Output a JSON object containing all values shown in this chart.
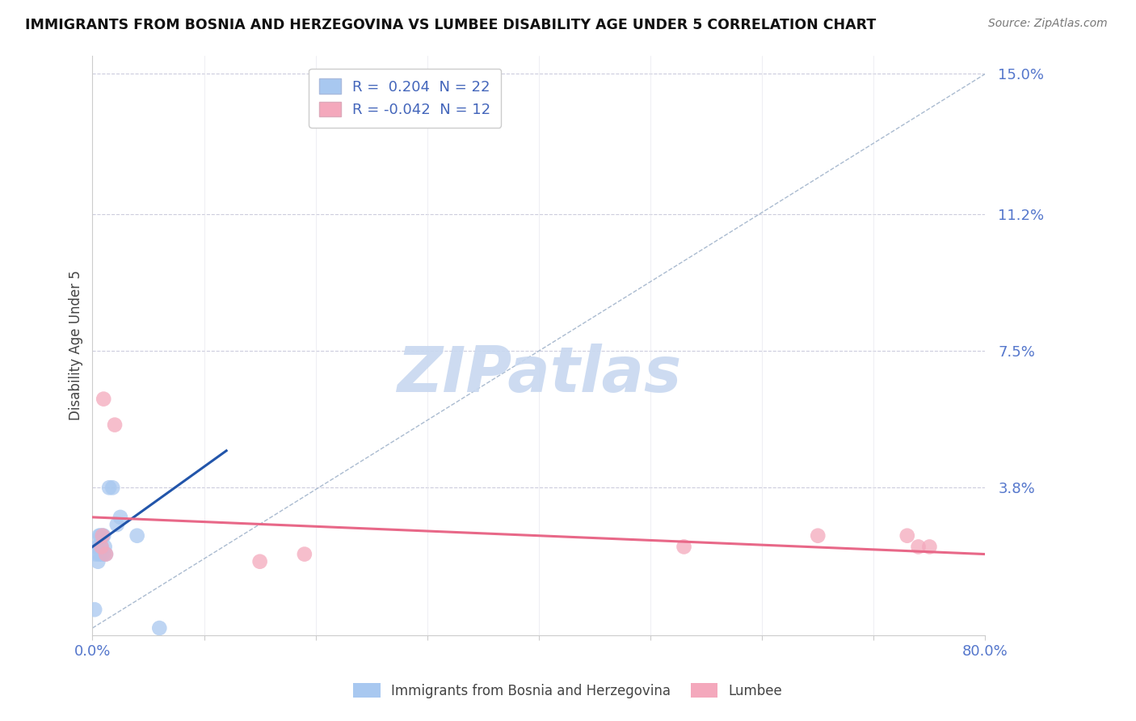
{
  "title": "IMMIGRANTS FROM BOSNIA AND HERZEGOVINA VS LUMBEE DISABILITY AGE UNDER 5 CORRELATION CHART",
  "source": "Source: ZipAtlas.com",
  "xlabel": "",
  "ylabel": "Disability Age Under 5",
  "xlim": [
    0.0,
    0.8
  ],
  "ylim": [
    -0.002,
    0.155
  ],
  "yticks": [
    0.0,
    0.038,
    0.075,
    0.112,
    0.15
  ],
  "ytick_labels": [
    "",
    "3.8%",
    "7.5%",
    "11.2%",
    "15.0%"
  ],
  "xticks": [
    0.0,
    0.1,
    0.2,
    0.3,
    0.4,
    0.5,
    0.6,
    0.7,
    0.8
  ],
  "xtick_labels": [
    "0.0%",
    "",
    "",
    "",
    "",
    "",
    "",
    "",
    "80.0%"
  ],
  "blue_r": 0.204,
  "blue_n": 22,
  "pink_r": -0.042,
  "pink_n": 12,
  "blue_color": "#A8C8F0",
  "pink_color": "#F4A8BC",
  "blue_line_color": "#2255AA",
  "pink_line_color": "#E86888",
  "ref_line_color": "#AABBD0",
  "watermark": "ZIPatlas",
  "watermark_color": "#C8D8F0",
  "legend_label_blue": "Immigrants from Bosnia and Herzegovina",
  "legend_label_pink": "Lumbee",
  "blue_x": [
    0.002,
    0.003,
    0.004,
    0.005,
    0.005,
    0.006,
    0.006,
    0.007,
    0.007,
    0.008,
    0.008,
    0.009,
    0.01,
    0.01,
    0.011,
    0.012,
    0.015,
    0.018,
    0.022,
    0.025,
    0.04,
    0.06
  ],
  "blue_y": [
    0.005,
    0.02,
    0.022,
    0.018,
    0.022,
    0.02,
    0.025,
    0.022,
    0.025,
    0.02,
    0.022,
    0.025,
    0.02,
    0.025,
    0.022,
    0.02,
    0.038,
    0.038,
    0.028,
    0.03,
    0.025,
    0.0
  ],
  "pink_x": [
    0.008,
    0.009,
    0.01,
    0.012,
    0.02,
    0.15,
    0.19,
    0.53,
    0.65,
    0.73,
    0.74,
    0.75
  ],
  "pink_y": [
    0.022,
    0.025,
    0.062,
    0.02,
    0.055,
    0.018,
    0.02,
    0.022,
    0.025,
    0.025,
    0.022,
    0.022
  ],
  "blue_trend_x0": 0.0,
  "blue_trend_y0": 0.022,
  "blue_trend_x1": 0.12,
  "blue_trend_y1": 0.048,
  "pink_trend_x0": 0.0,
  "pink_trend_y0": 0.03,
  "pink_trend_x1": 0.8,
  "pink_trend_y1": 0.02
}
